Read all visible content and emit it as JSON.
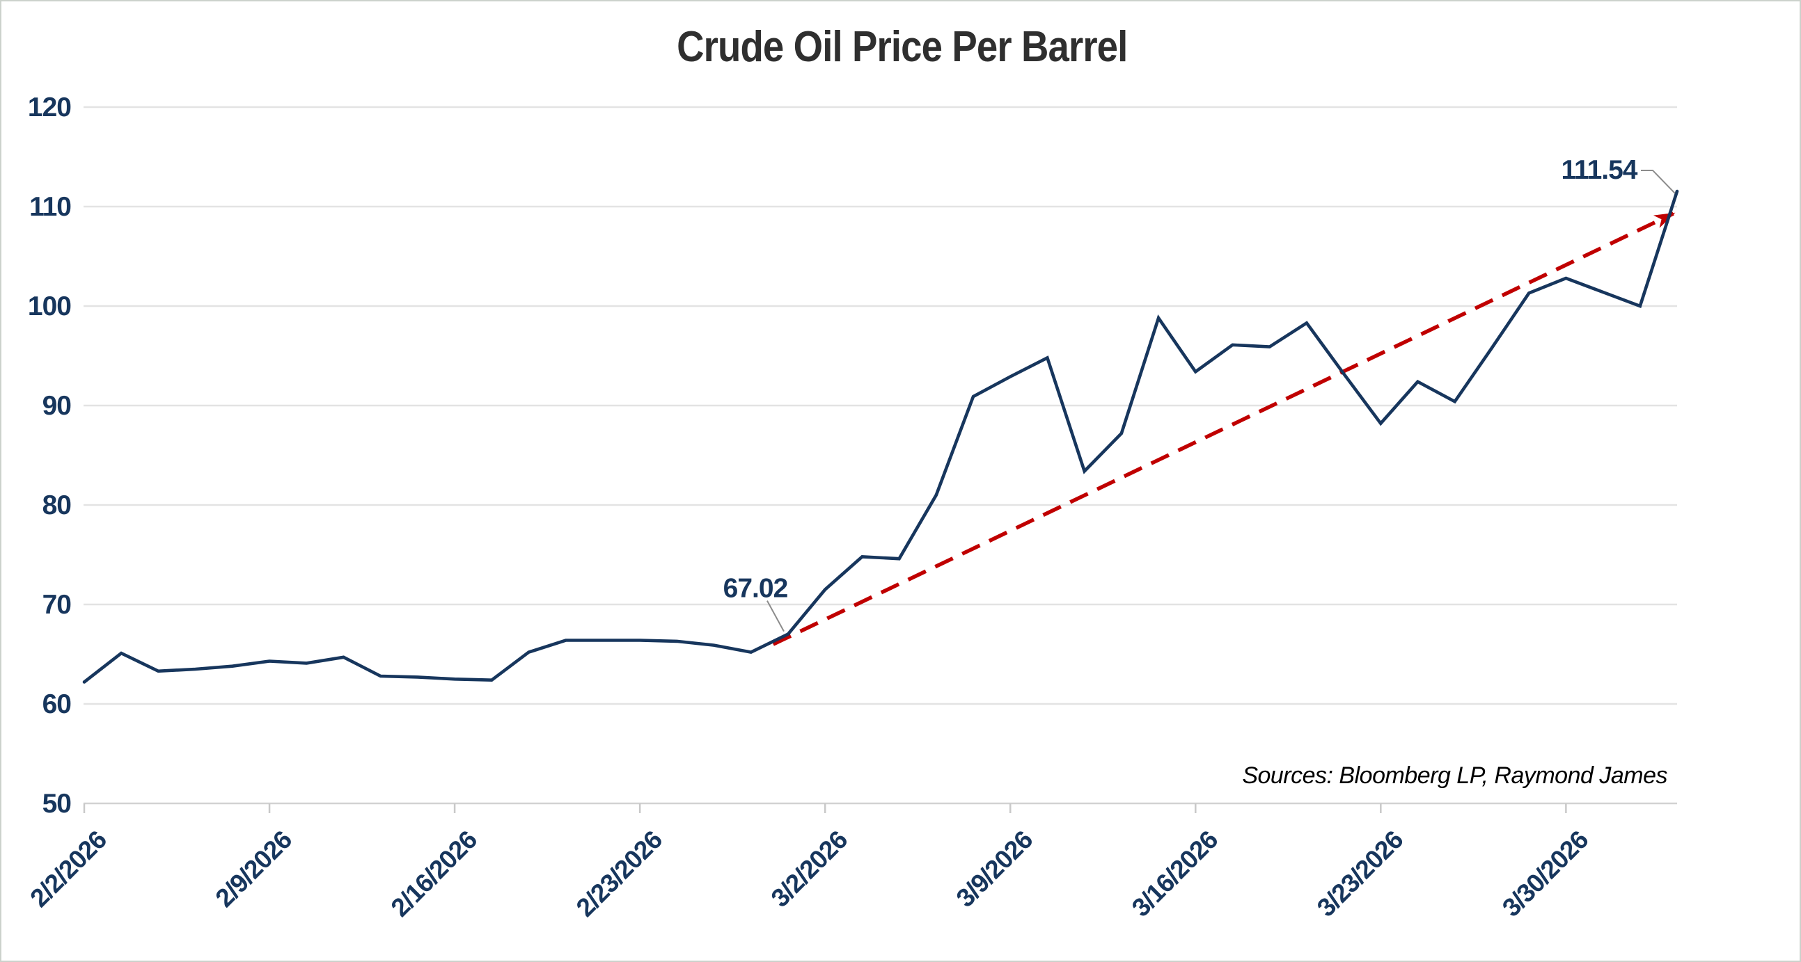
{
  "page": {
    "title": "Crude Oil Price Per Barrel",
    "source_note": "Sources: Bloomberg LP, Raymond James"
  },
  "colors": {
    "series_line": "#17365d",
    "trend_line": "#c00000",
    "gridline": "#e3e3e3",
    "axis_line": "#d2d2d2",
    "tick_mark": "#c9c9c9",
    "axis_label_text": "#17365d",
    "title_text": "#2f2f2f",
    "source_text": "#000000",
    "annotation_text": "#17365d",
    "leader_line": "#8c8c8c",
    "background": "#ffffff"
  },
  "chart_data": {
    "type": "line",
    "title": "Crude Oil Price Per Barrel",
    "xlabel": "",
    "ylabel": "",
    "grid": "horizontal",
    "legend": "none",
    "ylim": [
      50,
      120
    ],
    "y_ticks": [
      50,
      60,
      70,
      80,
      90,
      100,
      110,
      120
    ],
    "x_tick_labels": [
      "2/2/2026",
      "2/9/2026",
      "2/16/2026",
      "2/23/2026",
      "3/2/2026",
      "3/9/2026",
      "3/16/2026",
      "3/23/2026",
      "3/30/2026"
    ],
    "x_tick_every_n_points": 5,
    "series_name": "Crude Oil Price Per Barrel",
    "x": [
      "2/2/2026",
      "2/3/2026",
      "2/4/2026",
      "2/5/2026",
      "2/6/2026",
      "2/9/2026",
      "2/10/2026",
      "2/11/2026",
      "2/12/2026",
      "2/13/2026",
      "2/16/2026",
      "2/17/2026",
      "2/18/2026",
      "2/19/2026",
      "2/20/2026",
      "2/23/2026",
      "2/24/2026",
      "2/25/2026",
      "2/26/2026",
      "2/27/2026",
      "3/2/2026",
      "3/3/2026",
      "3/4/2026",
      "3/5/2026",
      "3/6/2026",
      "3/9/2026",
      "3/10/2026",
      "3/11/2026",
      "3/12/2026",
      "3/13/2026",
      "3/16/2026",
      "3/17/2026",
      "3/18/2026",
      "3/19/2026",
      "3/20/2026",
      "3/23/2026",
      "3/24/2026",
      "3/25/2026",
      "3/26/2026",
      "3/27/2026",
      "3/30/2026",
      "3/31/2026",
      "4/1/2026",
      "4/2/2026"
    ],
    "values": [
      62.2,
      65.1,
      63.3,
      63.5,
      63.8,
      64.3,
      64.1,
      64.7,
      62.8,
      62.7,
      62.5,
      62.4,
      65.2,
      66.4,
      66.4,
      66.4,
      66.3,
      65.9,
      65.2,
      67.02,
      71.5,
      74.8,
      74.6,
      81.0,
      90.9,
      92.9,
      94.8,
      83.4,
      87.2,
      98.8,
      93.4,
      96.1,
      95.9,
      98.3,
      93.2,
      88.2,
      92.4,
      90.4,
      95.8,
      101.3,
      102.8,
      101.4,
      100.0,
      111.54
    ],
    "annotations": [
      {
        "text": "67.02",
        "index": 19,
        "value": 67.02
      },
      {
        "text": "111.54",
        "index": 43,
        "value": 111.54
      }
    ],
    "trend_line": {
      "style": "dashed",
      "arrow_end": true,
      "color": "#c00000",
      "from": {
        "x_index": 18.6,
        "value": 66.0
      },
      "to": {
        "x_index": 42.9,
        "value": 109.3
      }
    }
  }
}
